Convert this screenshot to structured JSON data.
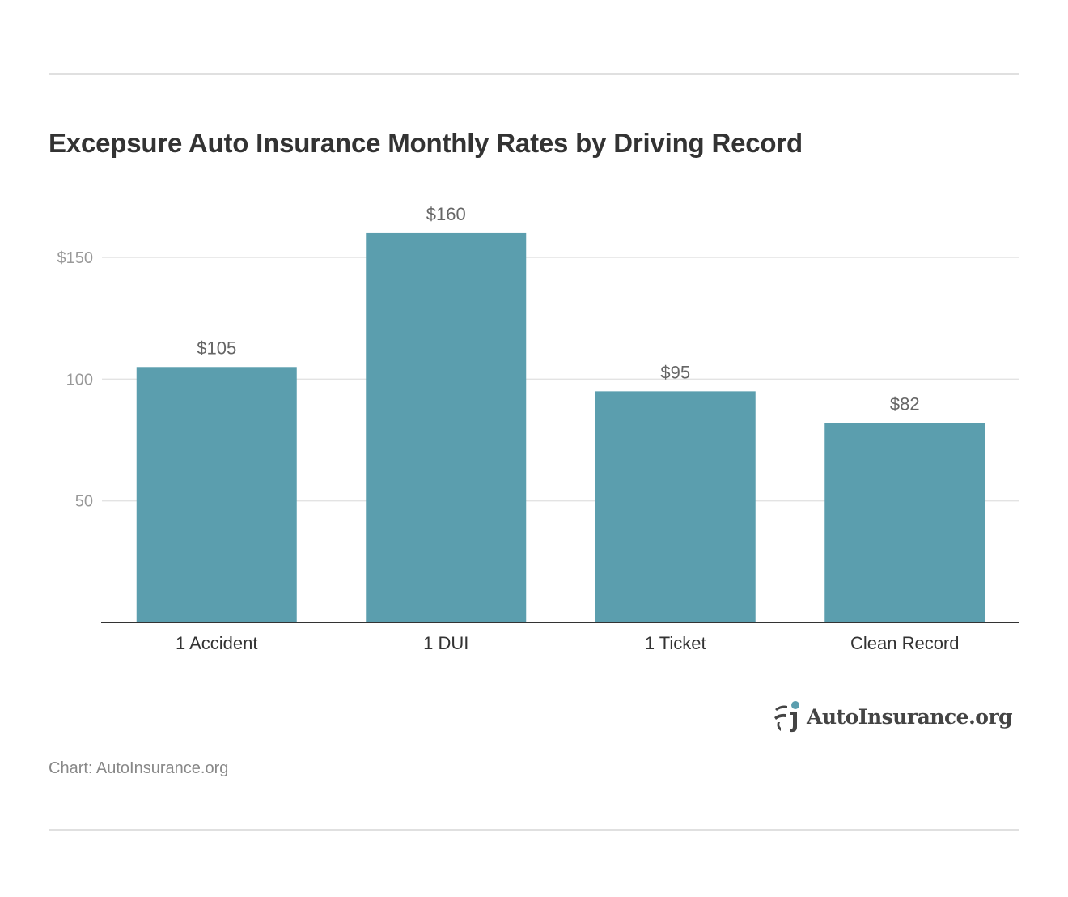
{
  "chart_data": {
    "type": "bar",
    "title": "Excepsure Auto Insurance Monthly Rates by Driving Record",
    "categories": [
      "1 Accident",
      "1 DUI",
      "1 Ticket",
      "Clean Record"
    ],
    "values": [
      105,
      160,
      95,
      82
    ],
    "data_labels": [
      "$105",
      "$160",
      "$95",
      "$82"
    ],
    "yticks": [
      50,
      100,
      150
    ],
    "ytick_labels": [
      "50",
      "100",
      "$150"
    ],
    "ylim": [
      0,
      170
    ],
    "grid": true,
    "xlabel": "",
    "ylabel": "",
    "bar_color": "#5b9eae"
  },
  "source": "Chart: AutoInsurance.org",
  "logo": {
    "text": "AutoInsurance.org",
    "accent": "#5b9eae"
  }
}
